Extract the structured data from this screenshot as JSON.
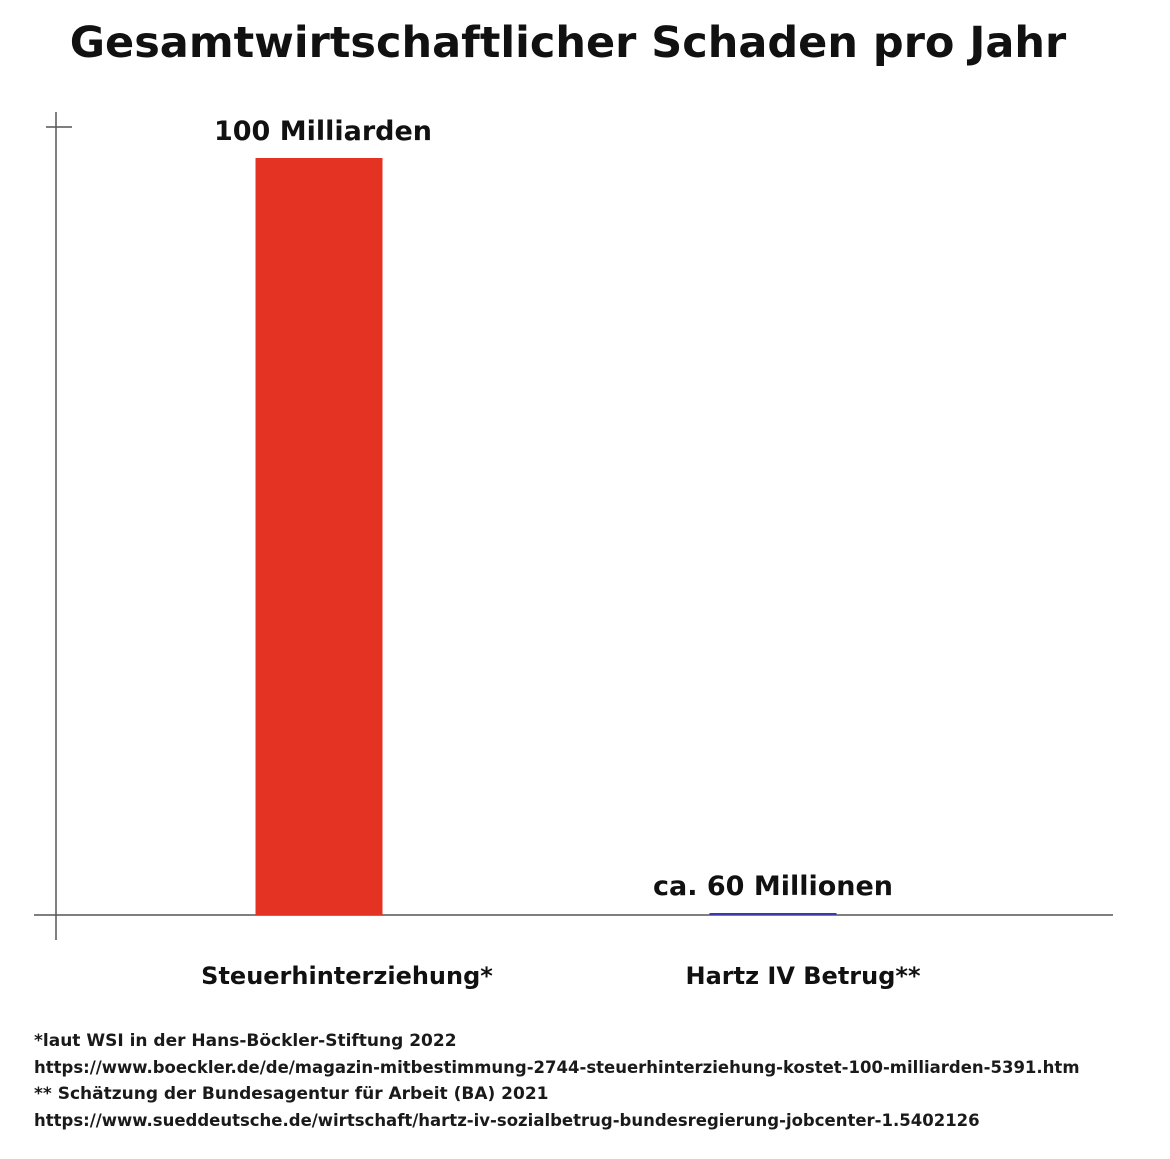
{
  "chart_data": {
    "type": "bar",
    "title": "Gesamtwirtschaftlicher Schaden pro Jahr",
    "xlabel": "",
    "ylabel": "",
    "unit": "EUR",
    "categories": [
      "Steuerhinterziehung*",
      "Hartz IV Betrug**"
    ],
    "values": [
      100000000000,
      60000000
    ],
    "data_labels": [
      "100 Milliarden",
      "ca. 60 Millionen"
    ],
    "ylim": [
      0,
      100000000000
    ],
    "grid": false,
    "legend": "none",
    "colors": [
      "#e43323",
      "#3a3aa8"
    ]
  },
  "colors": {
    "axis": "#555555",
    "text": "#111111"
  },
  "footnotes": [
    "*laut WSI in der Hans-Böckler-Stiftung 2022",
    "https://www.boeckler.de/de/magazin-mitbestimmung-2744-steuerhinterziehung-kostet-100-milliarden-5391.htm",
    "** Schätzung der Bundesagentur für Arbeit (BA) 2021",
    "https://www.sueddeutsche.de/wirtschaft/hartz-iv-sozialbetrug-bundesregierung-jobcenter-1.5402126"
  ]
}
